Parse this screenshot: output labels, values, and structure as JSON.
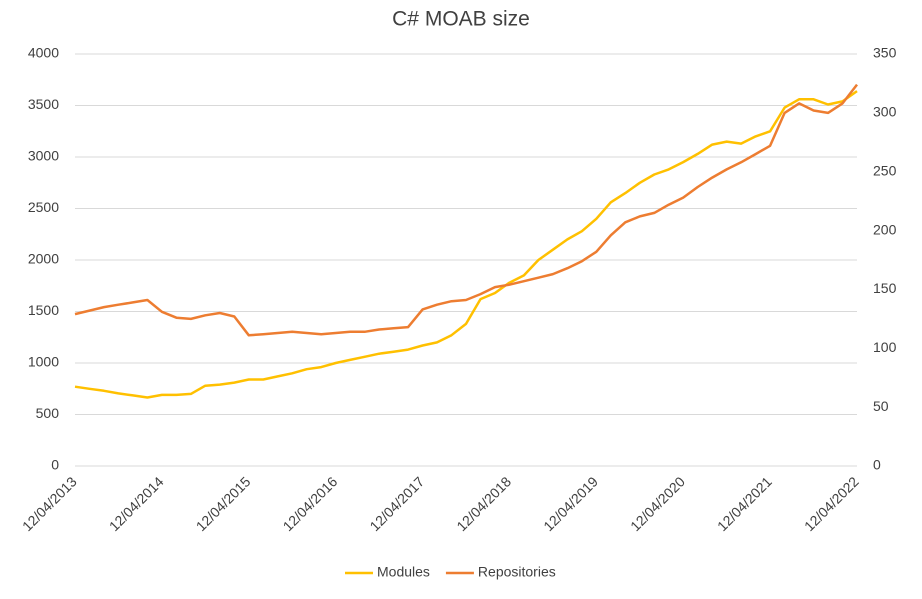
{
  "chart_data": {
    "type": "line",
    "title": "C# MOAB size",
    "categories": [
      "12/04/2013",
      null,
      null,
      null,
      null,
      null,
      "12/04/2014",
      null,
      null,
      null,
      null,
      null,
      "12/04/2015",
      null,
      null,
      null,
      null,
      null,
      "12/04/2016",
      null,
      null,
      null,
      null,
      null,
      "12/04/2017",
      null,
      null,
      null,
      null,
      null,
      "12/04/2018",
      null,
      null,
      null,
      null,
      null,
      "12/04/2019",
      null,
      null,
      null,
      null,
      null,
      "12/04/2020",
      null,
      null,
      null,
      null,
      null,
      "12/04/2021",
      null,
      null,
      null,
      null,
      null,
      "12/04/2022"
    ],
    "series": [
      {
        "name": "Modules",
        "color": "#FFC000",
        "axis": "y",
        "values": [
          770,
          750,
          730,
          705,
          685,
          665,
          690,
          690,
          700,
          780,
          790,
          810,
          840,
          840,
          870,
          900,
          940,
          960,
          1000,
          1030,
          1060,
          1090,
          1110,
          1130,
          1170,
          1200,
          1270,
          1380,
          1620,
          1680,
          1780,
          1850,
          2000,
          2100,
          2200,
          2280,
          2400,
          2560,
          2650,
          2750,
          2830,
          2880,
          2950,
          3030,
          3120,
          3150,
          3130,
          3200,
          3250,
          3480,
          3560,
          3560,
          3510,
          3540,
          3640
        ]
      },
      {
        "name": "Repositories",
        "color": "#ED7D31",
        "axis": "y2",
        "values": [
          129,
          132,
          135,
          137,
          139,
          141,
          131,
          126,
          125,
          128,
          130,
          127,
          111,
          112,
          113,
          114,
          113,
          112,
          113,
          114,
          114,
          116,
          117,
          118,
          133,
          137,
          140,
          141,
          146,
          152,
          154,
          157,
          160,
          163,
          168,
          174,
          182,
          196,
          207,
          212,
          215,
          222,
          228,
          237,
          245,
          252,
          258,
          265,
          272,
          300,
          308,
          302,
          300,
          308,
          324
        ]
      }
    ],
    "ylim": [
      0,
      4000
    ],
    "yticks": [
      0,
      500,
      1000,
      1500,
      2000,
      2500,
      3000,
      3500,
      4000
    ],
    "y2lim": [
      0,
      350
    ],
    "y2ticks": [
      0,
      50,
      100,
      150,
      200,
      250,
      300,
      350
    ],
    "grid": true,
    "legend": "bottom"
  }
}
